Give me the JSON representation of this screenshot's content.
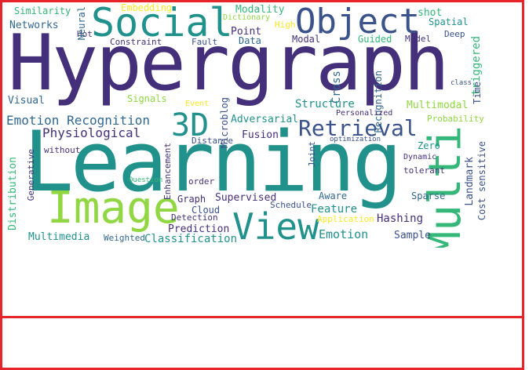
{
  "colors": {
    "frame": "#e5252a",
    "purple": "#44307a",
    "indigo": "#3b528b",
    "blue": "#31688e",
    "teal": "#21918c",
    "green": "#35b779",
    "lime": "#90d743",
    "yellow": "#fde725"
  },
  "words": {
    "hypergraph": "Hypergraph",
    "learning": "Learning",
    "image": "Image",
    "social": "Social",
    "object": "Object",
    "view": "View",
    "multi": "Multi",
    "retrieval": "Retrieval",
    "three_d": "3D",
    "emotion_recognition": "Emotion Recognition",
    "physiological": "Physiological",
    "similarity": "Similarity",
    "embedding": "Embedding",
    "modality": "Modality",
    "networks": "Networks",
    "neural": "Neural",
    "hot": "Hot",
    "constraint": "Constraint",
    "fault": "Fault",
    "point": "Point",
    "data": "Data",
    "dictionary": "Dictionary",
    "high": "High",
    "modal": "Modal",
    "guided": "Guided",
    "model": "Model",
    "shot": "shot",
    "spatial": "Spatial",
    "deep": "Deep",
    "time": "Time",
    "triggered": "triggered",
    "visual": "Visual",
    "signals": "Signals",
    "microblog": "Microblog",
    "cross": "Cross",
    "structure": "Structure",
    "recognition": "Recognition",
    "multimodal": "Multimodal",
    "personalized": "Personalized",
    "probability": "Probability",
    "adversarial": "Adversarial",
    "fusion": "Fusion",
    "distance": "Distance",
    "without": "without",
    "generative": "Generative",
    "distribution": "Distribution",
    "enhancement": "Enhancement",
    "order": "order",
    "graph": "Graph",
    "supervised": "Supervised",
    "cloud": "Cloud",
    "schedule": "Schedule",
    "aware": "Aware",
    "feature": "Feature",
    "detection": "Detection",
    "prediction": "Prediction",
    "classification": "Classification",
    "weighted": "Weighted",
    "multimedia": "Multimedia",
    "emotion": "Emotion",
    "sample": "Sample",
    "hashing": "Hashing",
    "landmark": "Landmark",
    "cost_sensitive": "Cost sensitive",
    "zero": "Zero",
    "dynamic": "Dynamic",
    "tolerant": "tolerant",
    "sparse": "Sparse",
    "application": "Application",
    "joint": "Joint",
    "event": "Event",
    "optimization": "optimization",
    "question": "Question",
    "class": "class"
  }
}
